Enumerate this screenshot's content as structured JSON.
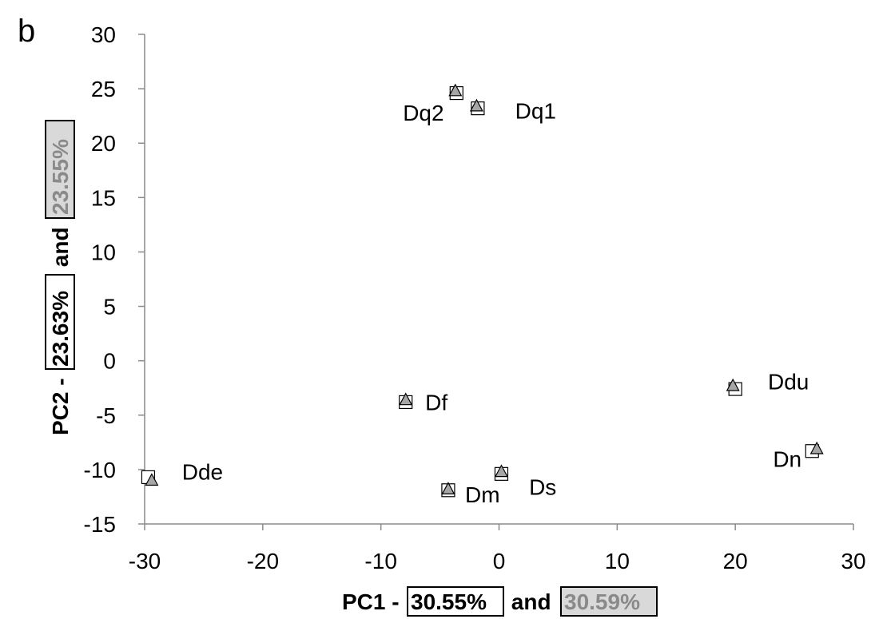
{
  "panel_letter": "b",
  "chart_data": {
    "type": "scatter",
    "title": "",
    "xlabel": {
      "prefix": "PC1 - ",
      "value_a": "30.55%",
      "joiner": " and ",
      "value_b": "30.59%"
    },
    "ylabel": {
      "prefix": "PC2 - ",
      "value_a": "23.63%",
      "joiner": " and ",
      "value_b": "23.55%"
    },
    "xlim": [
      -30,
      30
    ],
    "ylim": [
      -15,
      30
    ],
    "xticks": [
      -30,
      -20,
      -10,
      0,
      10,
      20,
      30
    ],
    "yticks": [
      -15,
      -10,
      -5,
      0,
      5,
      10,
      15,
      20,
      25,
      30
    ],
    "xtick_labels": [
      "-30",
      "-20",
      "-10",
      "0",
      "10",
      "20",
      "30"
    ],
    "ytick_labels": [
      "-15",
      "-10",
      "-5",
      "0",
      "5",
      "10",
      "15",
      "20",
      "25",
      "30"
    ],
    "grid": false,
    "series": [
      {
        "marker": "square",
        "color": "#ffffff",
        "points": [
          {
            "label": "Dq2",
            "x": -3.6,
            "y": 24.6
          },
          {
            "label": "Dq1",
            "x": -1.8,
            "y": 23.2
          },
          {
            "label": "Ddu",
            "x": 20.0,
            "y": -2.6
          },
          {
            "label": "Df",
            "x": -7.9,
            "y": -3.8
          },
          {
            "label": "Dn",
            "x": 26.5,
            "y": -8.3
          },
          {
            "label": "Dde",
            "x": -29.7,
            "y": -10.7
          },
          {
            "label": "Ds",
            "x": 0.2,
            "y": -10.4
          },
          {
            "label": "Dm",
            "x": -4.3,
            "y": -11.9
          }
        ]
      },
      {
        "marker": "triangle",
        "color": "#a6a6a6",
        "points": [
          {
            "label": "Dq2",
            "x": -3.7,
            "y": 24.8
          },
          {
            "label": "Dq1",
            "x": -1.9,
            "y": 23.4
          },
          {
            "label": "Ddu",
            "x": 19.8,
            "y": -2.3
          },
          {
            "label": "Df",
            "x": -7.9,
            "y": -3.6
          },
          {
            "label": "Dn",
            "x": 26.9,
            "y": -8.1
          },
          {
            "label": "Dde",
            "x": -29.4,
            "y": -11.0
          },
          {
            "label": "Ds",
            "x": 0.2,
            "y": -10.2
          },
          {
            "label": "Dm",
            "x": -4.3,
            "y": -11.8
          }
        ]
      }
    ],
    "point_labels": [
      {
        "text": "Dq2",
        "x": -6.4,
        "y": 22.8
      },
      {
        "text": "Dq1",
        "x": 3.1,
        "y": 23.0
      },
      {
        "text": "Ddu",
        "x": 24.5,
        "y": -1.9
      },
      {
        "text": "Df",
        "x": -5.3,
        "y": -3.8
      },
      {
        "text": "Dn",
        "x": 24.4,
        "y": -9.0
      },
      {
        "text": "Dde",
        "x": -25.1,
        "y": -10.2
      },
      {
        "text": "Ds",
        "x": 3.7,
        "y": -11.6
      },
      {
        "text": "Dm",
        "x": -1.4,
        "y": -12.3
      }
    ]
  }
}
